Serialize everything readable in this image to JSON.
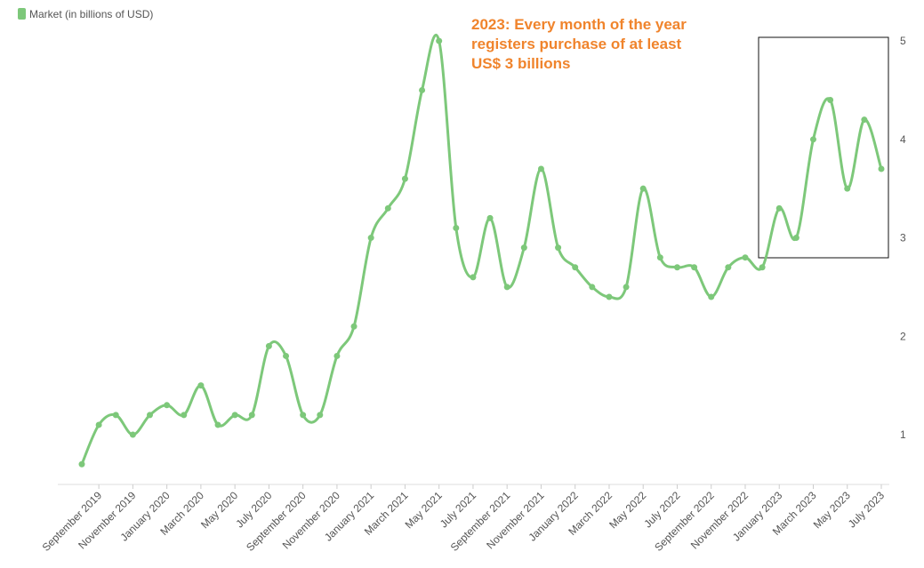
{
  "chart_data": {
    "type": "line",
    "legend": "Market (in billions of USD)",
    "annotation": "2023: Every month of the year registers purchase of at least US$ 3 billions",
    "categories": [
      null,
      "September 2019",
      null,
      "November 2019",
      null,
      "January 2020",
      null,
      "March 2020",
      null,
      "May 2020",
      null,
      "July 2020",
      null,
      "September 2020",
      null,
      "November 2020",
      null,
      "January 2021",
      null,
      "March 2021",
      null,
      "May 2021",
      null,
      "July 2021",
      null,
      "September 2021",
      null,
      "November 2021",
      null,
      "January 2022",
      null,
      "March 2022",
      null,
      "May 2022",
      null,
      "July 2022",
      null,
      "September 2022",
      null,
      "November 2022",
      null,
      "January 2023",
      null,
      "March 2023",
      null,
      "May 2023",
      null,
      "July 2023"
    ],
    "series": [
      {
        "name": "Market (in billions of USD)",
        "color": "#7dc87a",
        "values": [
          0.7,
          1.1,
          1.2,
          1.0,
          1.2,
          1.3,
          1.2,
          1.5,
          1.1,
          1.2,
          1.2,
          1.9,
          1.8,
          1.2,
          1.2,
          1.8,
          2.1,
          3.0,
          3.3,
          3.6,
          4.5,
          5.0,
          3.1,
          2.6,
          3.2,
          2.5,
          2.9,
          3.7,
          2.9,
          2.7,
          2.5,
          2.4,
          2.5,
          3.5,
          2.8,
          2.7,
          2.7,
          2.4,
          2.7,
          2.8,
          2.7,
          3.3,
          3.0,
          4.0,
          4.4,
          3.5,
          4.2,
          3.7
        ]
      }
    ],
    "ylim": [
      0.5,
      5.1
    ],
    "yticks": [
      1,
      2,
      3,
      4,
      5
    ],
    "grid": false
  }
}
